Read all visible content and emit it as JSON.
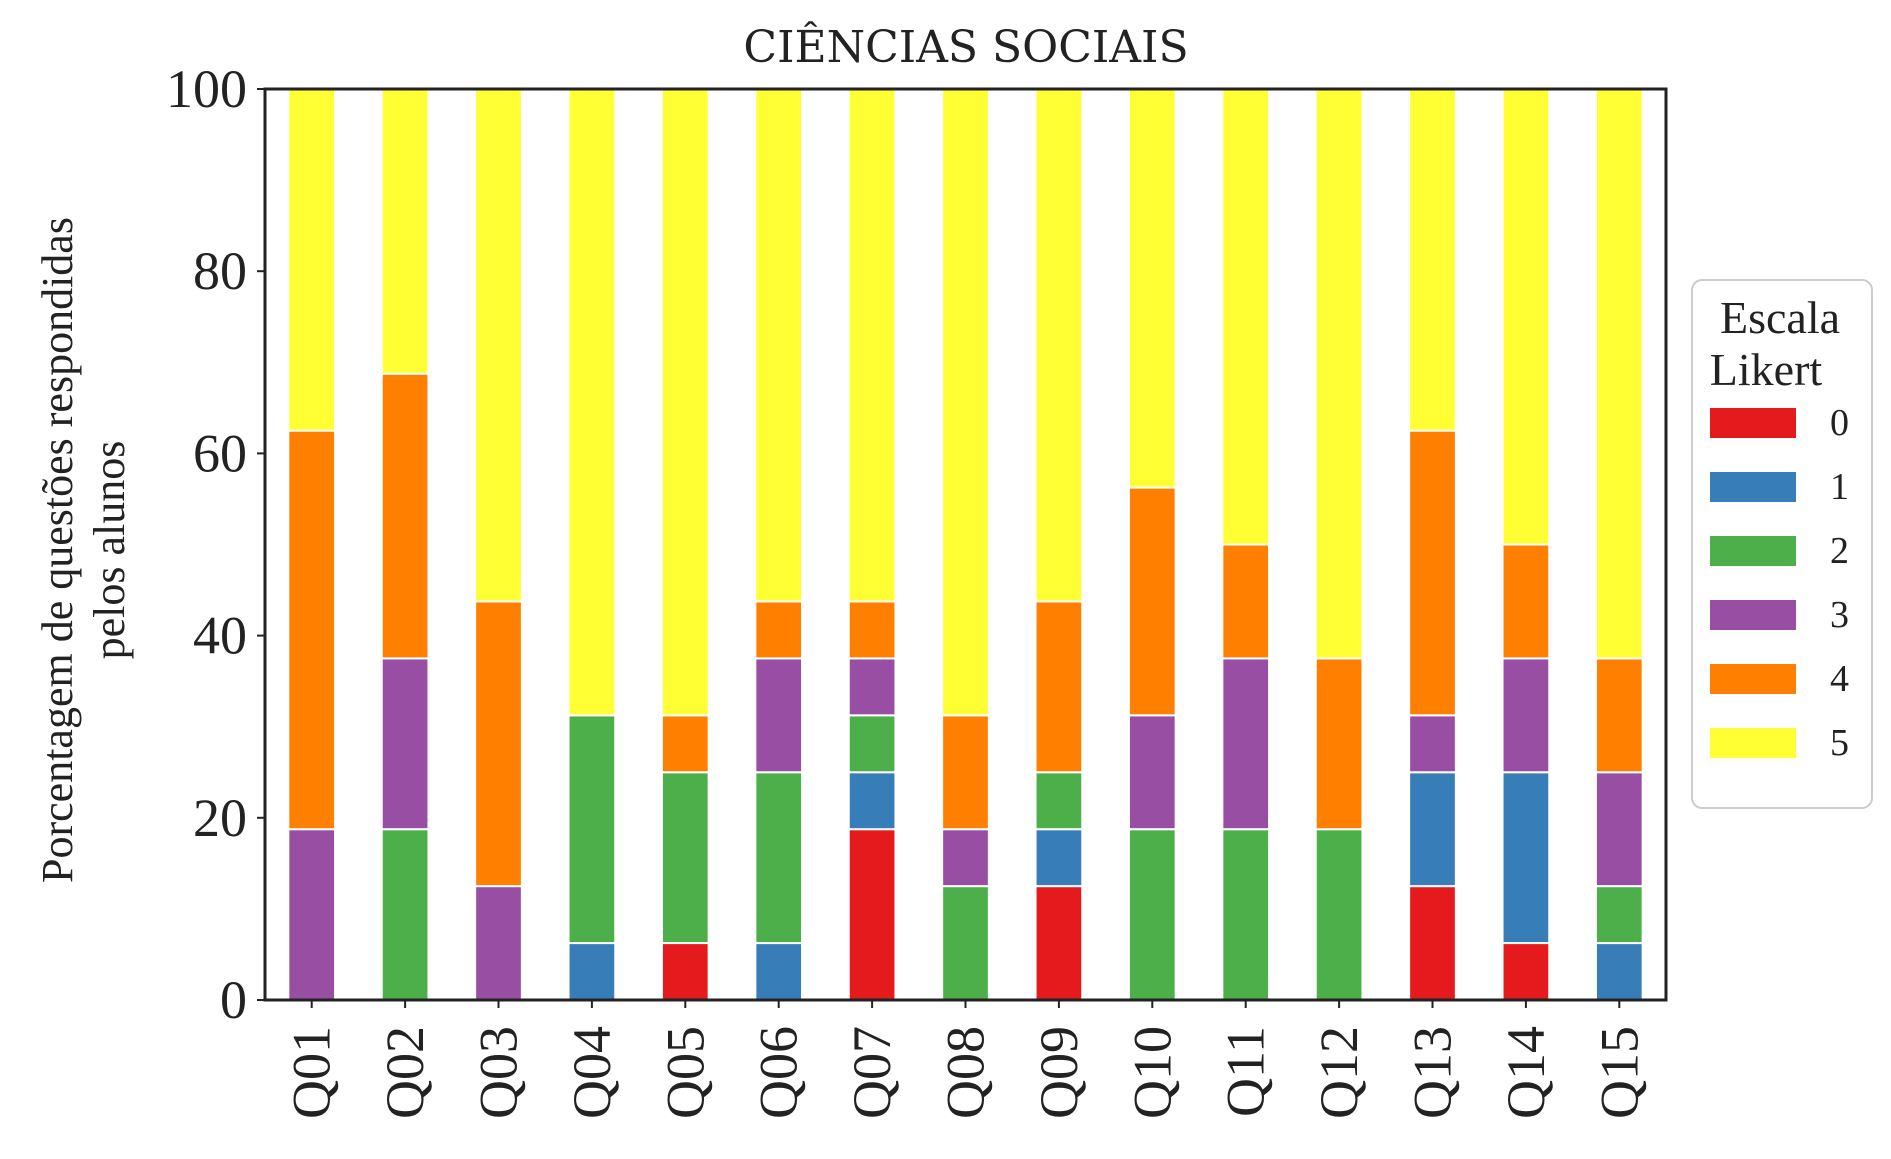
{
  "chart_data": {
    "type": "bar",
    "stacked": true,
    "title": "CIÊNCIAS SOCIAIS",
    "ylabel_lines": [
      "Porcentagem de questões respondidas",
      "pelos alunos"
    ],
    "xlabel": "",
    "ylim": [
      0,
      100
    ],
    "yticks": [
      "0",
      "20",
      "40",
      "60",
      "80",
      "100"
    ],
    "categories": [
      "Q01",
      "Q02",
      "Q03",
      "Q04",
      "Q05",
      "Q06",
      "Q07",
      "Q08",
      "Q09",
      "Q10",
      "Q11",
      "Q12",
      "Q13",
      "Q14",
      "Q15"
    ],
    "legend": {
      "title_lines": [
        "Escala",
        "Likert"
      ],
      "placement": "center-right"
    },
    "grid": false,
    "series": [
      {
        "name": "0",
        "color": "#e41a1c",
        "values": [
          0,
          0,
          0,
          0,
          6.25,
          0,
          18.75,
          0,
          12.5,
          0,
          0,
          0,
          12.5,
          6.25,
          0
        ]
      },
      {
        "name": "1",
        "color": "#377eb8",
        "values": [
          0,
          0,
          0,
          6.25,
          0,
          6.25,
          6.25,
          0,
          6.25,
          0,
          0,
          0,
          12.5,
          18.75,
          6.25
        ]
      },
      {
        "name": "2",
        "color": "#4daf4a",
        "values": [
          0,
          18.75,
          0,
          25,
          18.75,
          18.75,
          6.25,
          12.5,
          6.25,
          18.75,
          18.75,
          18.75,
          0,
          0,
          6.25
        ]
      },
      {
        "name": "3",
        "color": "#984ea3",
        "values": [
          18.75,
          18.75,
          12.5,
          0,
          0,
          12.5,
          6.25,
          6.25,
          0,
          12.5,
          18.75,
          0,
          6.25,
          12.5,
          12.5
        ]
      },
      {
        "name": "4",
        "color": "#ff7f00",
        "values": [
          43.75,
          31.25,
          31.25,
          0,
          6.25,
          6.25,
          6.25,
          12.5,
          18.75,
          25,
          12.5,
          18.75,
          31.25,
          12.5,
          12.5
        ]
      },
      {
        "name": "5",
        "color": "#ffff33",
        "values": [
          37.5,
          31.25,
          56.25,
          68.75,
          68.75,
          56.25,
          56.25,
          68.75,
          56.25,
          43.75,
          50,
          62.5,
          37.5,
          50,
          62.5
        ]
      }
    ]
  }
}
